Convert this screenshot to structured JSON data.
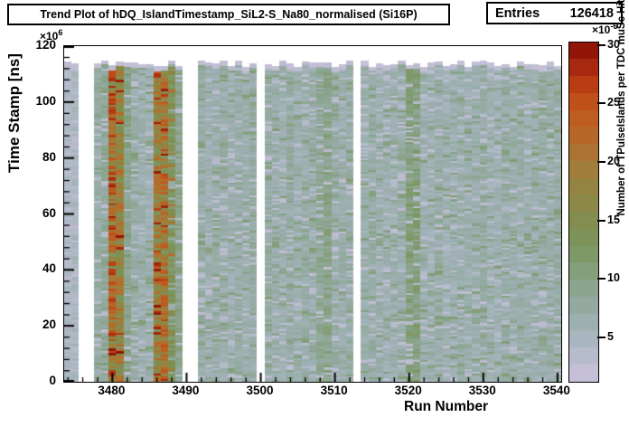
{
  "title": "Trend Plot of hDQ_IslandTimestamp_SiL2-S_Na80_normalised (Si16P)",
  "stats": {
    "label": "Entries",
    "value": "126418"
  },
  "axes": {
    "x": {
      "title": "Run Number",
      "min": 3473.5,
      "max": 3540.5,
      "major_ticks": [
        3480,
        3490,
        3500,
        3510,
        3520,
        3530,
        3540
      ],
      "minor_step": 2
    },
    "y": {
      "title": "Time Stamp [ns]",
      "exp_base": "×10",
      "exp_power": "6",
      "min": 0,
      "max": 120,
      "major_ticks": [
        0,
        20,
        40,
        60,
        80,
        100,
        120
      ],
      "minor_step": 4
    },
    "z": {
      "title": "Number of TPulseIslands per TDC muSc Hit",
      "exp_base": "×10",
      "exp_power": "-6",
      "min": 1.27,
      "max": 30.3,
      "major_ticks": [
        5,
        10,
        15,
        20,
        25,
        30
      ]
    }
  },
  "chart_data": {
    "type": "heatmap",
    "title": "Trend Plot of hDQ_IslandTimestamp_SiL2-S_Na80_normalised (Si16P)",
    "entries": 126418,
    "xlabel": "Run Number",
    "ylabel": "Time Stamp [ns]",
    "zlabel": "Number of TPulseIslands per TDC muSc Hit",
    "x_range": [
      3474,
      3540
    ],
    "y_range": [
      0,
      120000000
    ],
    "column_top_value": 113500000,
    "z_unit": "1e-6",
    "z_range": [
      1.3,
      30.3
    ],
    "level_means_z": {
      "pale": 4.6,
      "norm": 6.6,
      "sage": 9.0,
      "olive": 10.8,
      "oliveh": 13.5,
      "hot": 19.5,
      "hot2": 21.5
    },
    "missing_runs": [
      3476,
      3477,
      3490,
      3491,
      3500,
      3513
    ],
    "hot_runs": [
      3480,
      3481,
      3486,
      3487
    ],
    "runs": [
      {
        "r": 3474,
        "l": "pale"
      },
      {
        "r": 3475,
        "l": "pale"
      },
      {
        "r": 3476,
        "l": "gap"
      },
      {
        "r": 3477,
        "l": "gap"
      },
      {
        "r": 3478,
        "l": "norm"
      },
      {
        "r": 3479,
        "l": "sage"
      },
      {
        "r": 3480,
        "l": "hot2"
      },
      {
        "r": 3481,
        "l": "hot"
      },
      {
        "r": 3482,
        "l": "sage"
      },
      {
        "r": 3483,
        "l": "norm"
      },
      {
        "r": 3484,
        "l": "norm"
      },
      {
        "r": 3485,
        "l": "norm"
      },
      {
        "r": 3486,
        "l": "hot"
      },
      {
        "r": 3487,
        "l": "hot2"
      },
      {
        "r": 3488,
        "l": "oliveh"
      },
      {
        "r": 3489,
        "l": "sage"
      },
      {
        "r": 3490,
        "l": "gap"
      },
      {
        "r": 3491,
        "l": "gap"
      },
      {
        "r": 3492,
        "l": "norm"
      },
      {
        "r": 3493,
        "l": "norm"
      },
      {
        "r": 3494,
        "l": "norm"
      },
      {
        "r": 3495,
        "l": "norm"
      },
      {
        "r": 3496,
        "l": "norm"
      },
      {
        "r": 3497,
        "l": "norm"
      },
      {
        "r": 3498,
        "l": "norm"
      },
      {
        "r": 3499,
        "l": "norm"
      },
      {
        "r": 3500,
        "l": "gap"
      },
      {
        "r": 3501,
        "l": "norm"
      },
      {
        "r": 3502,
        "l": "norm"
      },
      {
        "r": 3503,
        "l": "norm"
      },
      {
        "r": 3504,
        "l": "norm"
      },
      {
        "r": 3505,
        "l": "norm"
      },
      {
        "r": 3506,
        "l": "norm"
      },
      {
        "r": 3507,
        "l": "norm"
      },
      {
        "r": 3508,
        "l": "sage"
      },
      {
        "r": 3509,
        "l": "sage"
      },
      {
        "r": 3510,
        "l": "norm"
      },
      {
        "r": 3511,
        "l": "norm"
      },
      {
        "r": 3512,
        "l": "norm"
      },
      {
        "r": 3513,
        "l": "gap"
      },
      {
        "r": 3514,
        "l": "norm"
      },
      {
        "r": 3515,
        "l": "norm"
      },
      {
        "r": 3516,
        "l": "norm"
      },
      {
        "r": 3517,
        "l": "norm"
      },
      {
        "r": 3518,
        "l": "norm"
      },
      {
        "r": 3519,
        "l": "norm"
      },
      {
        "r": 3520,
        "l": "olive"
      },
      {
        "r": 3521,
        "l": "olive"
      },
      {
        "r": 3522,
        "l": "norm"
      },
      {
        "r": 3523,
        "l": "norm"
      },
      {
        "r": 3524,
        "l": "norm"
      },
      {
        "r": 3525,
        "l": "norm"
      },
      {
        "r": 3526,
        "l": "norm"
      },
      {
        "r": 3527,
        "l": "norm"
      },
      {
        "r": 3528,
        "l": "norm"
      },
      {
        "r": 3529,
        "l": "norm"
      },
      {
        "r": 3530,
        "l": "norm"
      },
      {
        "r": 3531,
        "l": "norm"
      },
      {
        "r": 3532,
        "l": "norm"
      },
      {
        "r": 3533,
        "l": "norm"
      },
      {
        "r": 3534,
        "l": "norm"
      },
      {
        "r": 3535,
        "l": "norm"
      },
      {
        "r": 3536,
        "l": "norm"
      },
      {
        "r": 3537,
        "l": "norm"
      },
      {
        "r": 3538,
        "l": "norm"
      },
      {
        "r": 3539,
        "l": "norm"
      },
      {
        "r": 3540,
        "l": "norm"
      }
    ],
    "palette_stops": [
      [
        1.3,
        "#cac3dc"
      ],
      [
        2.5,
        "#c2bed4"
      ],
      [
        4,
        "#b2bac7"
      ],
      [
        5.5,
        "#a3b3ba"
      ],
      [
        7,
        "#99adaa"
      ],
      [
        8.5,
        "#90a898"
      ],
      [
        10,
        "#88a287"
      ],
      [
        11.5,
        "#809b70"
      ],
      [
        13,
        "#7c955d"
      ],
      [
        14.5,
        "#7f8f52"
      ],
      [
        16,
        "#888a4a"
      ],
      [
        17.5,
        "#928543"
      ],
      [
        19,
        "#9d7f3b"
      ],
      [
        20.5,
        "#a97634"
      ],
      [
        22,
        "#b56b2a"
      ],
      [
        23.5,
        "#bd5f22"
      ],
      [
        25,
        "#c1531b"
      ],
      [
        26.5,
        "#bb4014"
      ],
      [
        28,
        "#a82a0e"
      ],
      [
        29.5,
        "#931708"
      ],
      [
        30.3,
        "#8a1004"
      ]
    ],
    "legend_position": "right-colorbar",
    "grid": false
  }
}
